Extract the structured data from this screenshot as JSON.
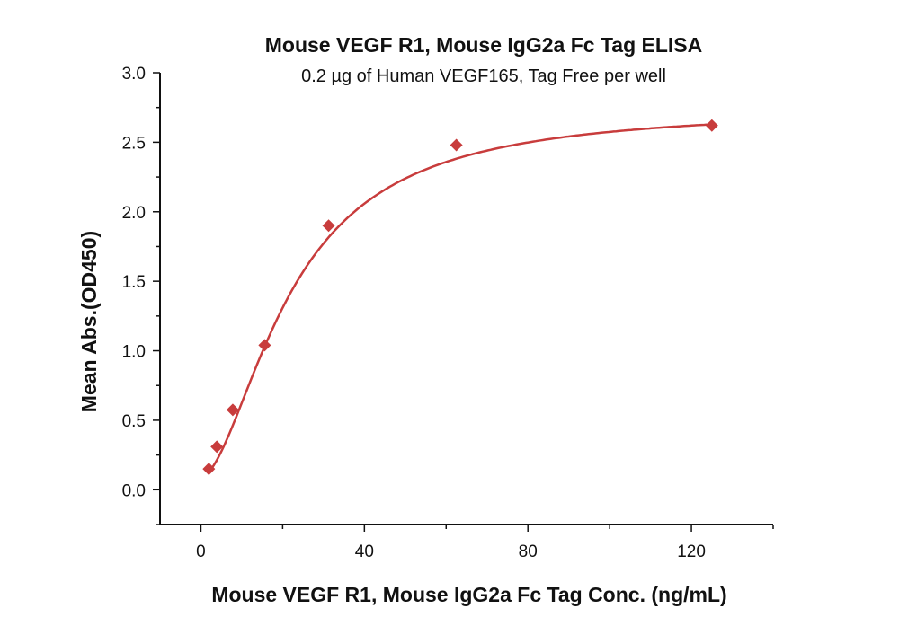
{
  "chart_data": {
    "type": "scatter",
    "title": "Mouse VEGF R1, Mouse IgG2a Fc Tag ELISA",
    "subtitle": "0.2 µg of Human VEGF165, Tag Free per well",
    "xlabel": "Mouse VEGF R1, Mouse IgG2a Fc Tag Conc. (ng/mL)",
    "ylabel": "Mean Abs.(OD450)",
    "xlim": [
      -10,
      140
    ],
    "ylim": [
      -0.25,
      3.0
    ],
    "x_ticks": [
      0,
      40,
      80,
      120
    ],
    "x_tick_labels": [
      "0",
      "40",
      "80",
      "120"
    ],
    "x_minor_ticks": [
      20,
      60,
      100,
      140
    ],
    "y_ticks": [
      0,
      0.5,
      1.0,
      1.5,
      2.0,
      2.5,
      3.0
    ],
    "y_tick_labels": [
      "0.0",
      "0.5",
      "1.0",
      "1.5",
      "2.0",
      "2.5",
      "3.0"
    ],
    "y_minor_ticks": [
      -0.25,
      0.25,
      0.75,
      1.25,
      1.75,
      2.25,
      2.75
    ],
    "grid": false,
    "marker": "diamond",
    "fit_curve": "four-parameter logistic",
    "color": "#c83c3c",
    "series": [
      {
        "x": [
          1.95,
          3.9,
          7.8,
          15.6,
          31.25,
          62.5,
          125
        ],
        "y": [
          0.15,
          0.31,
          0.575,
          1.04,
          1.9,
          2.48,
          2.62
        ]
      }
    ]
  }
}
